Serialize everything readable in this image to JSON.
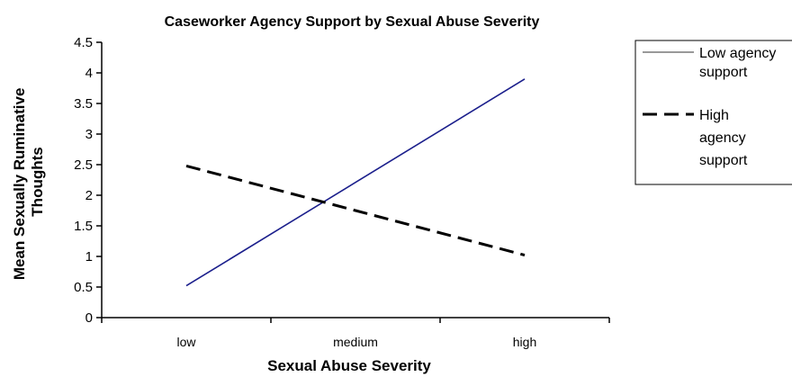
{
  "chart_data": {
    "type": "line",
    "title": "Caseworker Agency Support by Sexual Abuse Severity",
    "xlabel": "Sexual Abuse Severity",
    "ylabel": [
      "Mean Sexually Ruminative",
      "Thoughts"
    ],
    "categories": [
      "low",
      "medium",
      "high"
    ],
    "ylim": [
      0,
      4.5
    ],
    "yticks": [
      "0",
      "0.5",
      "1",
      "1.5",
      "2",
      "2.5",
      "3",
      "3.5",
      "4",
      "4.5"
    ],
    "grid": false,
    "legend_position": "right",
    "series": [
      {
        "name": [
          "Low agency",
          "support"
        ],
        "values": [
          0.52,
          2.21,
          3.9
        ],
        "color": "#1b1f8c",
        "style": "solid"
      },
      {
        "name": [
          "High",
          "agency",
          "support"
        ],
        "values": [
          2.48,
          1.75,
          1.02
        ],
        "color": "#000000",
        "style": "dashed"
      }
    ]
  }
}
